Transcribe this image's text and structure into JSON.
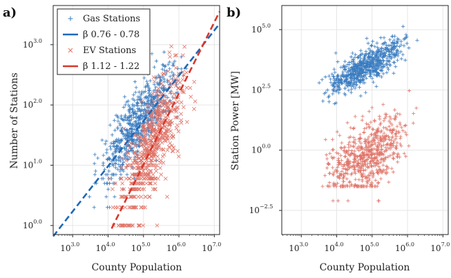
{
  "colors": {
    "gas": "#3a7cc0",
    "ev": "#e07468",
    "gas_fit": "#1e68b8",
    "ev_fit": "#d9362b"
  },
  "chart_data": [
    {
      "panel_label": "a)",
      "type": "scatter",
      "xlabel": "County Population",
      "ylabel": "Number of Stations",
      "xscale": "log10",
      "yscale": "log10",
      "xlim_log10": [
        2.45,
        7.15
      ],
      "ylim_log10": [
        -0.15,
        3.65
      ],
      "xticks": [
        {
          "v": 3,
          "label": "10",
          "exp": "3.0"
        },
        {
          "v": 4,
          "label": "10",
          "exp": "4.0"
        },
        {
          "v": 5,
          "label": "10",
          "exp": "5.0"
        },
        {
          "v": 6,
          "label": "10",
          "exp": "6.0"
        },
        {
          "v": 7,
          "label": "10",
          "exp": "7.0"
        }
      ],
      "yticks": [
        {
          "v": 0,
          "label": "10",
          "exp": "0.0"
        },
        {
          "v": 1,
          "label": "10",
          "exp": "1.0"
        },
        {
          "v": 2,
          "label": "10",
          "exp": "2.0"
        },
        {
          "v": 3,
          "label": "10",
          "exp": "3.0"
        }
      ],
      "grid": true,
      "legend_position": "top-left",
      "legend": [
        {
          "label": "Gas Stations",
          "marker": "plus",
          "color": "#3a7cc0"
        },
        {
          "label": "β 0.76 - 0.78",
          "marker": "dash-line",
          "color": "#1e68b8"
        },
        {
          "label": "EV Stations",
          "marker": "x",
          "color": "#e07468"
        },
        {
          "label": "β 1.12 - 1.22",
          "marker": "dash-line",
          "color": "#d9362b"
        }
      ],
      "series": [
        {
          "id": "gas-ev-count",
          "marker": "plus",
          "color": "#3a7cc0",
          "x_range": [
            2.8,
            6.9
          ],
          "y_at": [
            [
              2.8,
              0.1
            ],
            [
              3.0,
              0.3
            ],
            [
              4.0,
              1.0
            ],
            [
              5.0,
              1.8
            ],
            [
              6.0,
              2.5
            ],
            [
              6.9,
              3.2
            ]
          ],
          "scatter_dex": 0.28,
          "n": 700
        },
        {
          "id": "ev-count",
          "marker": "x",
          "color": "#e07468",
          "x_range": [
            3.5,
            7.0
          ],
          "y_at": [
            [
              3.5,
              0.0
            ],
            [
              4.5,
              0.5
            ],
            [
              5.5,
              1.6
            ],
            [
              6.5,
              2.6
            ],
            [
              7.0,
              3.2
            ]
          ],
          "scatter_dex": 0.4,
          "n": 600
        }
      ],
      "fit_lines": [
        {
          "name": "gas-fit",
          "color": "#1e68b8",
          "x": [
            2.45,
            7.15
          ],
          "y": [
            -0.18,
            3.35
          ]
        },
        {
          "name": "ev-fit",
          "color": "#d9362b",
          "x": [
            4.1,
            7.15
          ],
          "y": [
            -0.05,
            3.55
          ]
        }
      ]
    },
    {
      "panel_label": "b)",
      "type": "scatter",
      "xlabel": "County Population",
      "ylabel": "Station Power [MW]",
      "xscale": "log10",
      "yscale": "log10",
      "xlim_log10": [
        2.45,
        7.15
      ],
      "ylim_log10": [
        -3.5,
        6.0
      ],
      "xticks": [
        {
          "v": 3,
          "label": "10",
          "exp": "3.0"
        },
        {
          "v": 4,
          "label": "10",
          "exp": "4.0"
        },
        {
          "v": 5,
          "label": "10",
          "exp": "5.0"
        },
        {
          "v": 6,
          "label": "10",
          "exp": "6.0"
        },
        {
          "v": 7,
          "label": "10",
          "exp": "7.0"
        }
      ],
      "yticks": [
        {
          "v": -2.5,
          "label": "10",
          "exp": "−2.5"
        },
        {
          "v": 0,
          "label": "10",
          "exp": "0.0"
        },
        {
          "v": 2.5,
          "label": "10",
          "exp": "2.5"
        },
        {
          "v": 5,
          "label": "10",
          "exp": "5.0"
        }
      ],
      "grid": true,
      "series": [
        {
          "id": "gas-power",
          "marker": "plus",
          "color": "#3a7cc0",
          "x_range": [
            2.8,
            6.9
          ],
          "y_at": [
            [
              2.8,
              2.0
            ],
            [
              4.0,
              2.8
            ],
            [
              5.0,
              3.6
            ],
            [
              6.0,
              4.4
            ],
            [
              6.9,
              5.0
            ]
          ],
          "scatter_dex": 0.35,
          "n": 650
        },
        {
          "id": "ev-power",
          "marker": "plus",
          "color": "#e07468",
          "x_range": [
            2.8,
            6.9
          ],
          "y_at": [
            [
              2.8,
              -1.0
            ],
            [
              4.0,
              -0.9
            ],
            [
              5.0,
              -0.2
            ],
            [
              6.0,
              1.0
            ],
            [
              6.9,
              2.0
            ]
          ],
          "scatter_dex": 0.7,
          "n": 650
        }
      ]
    }
  ]
}
